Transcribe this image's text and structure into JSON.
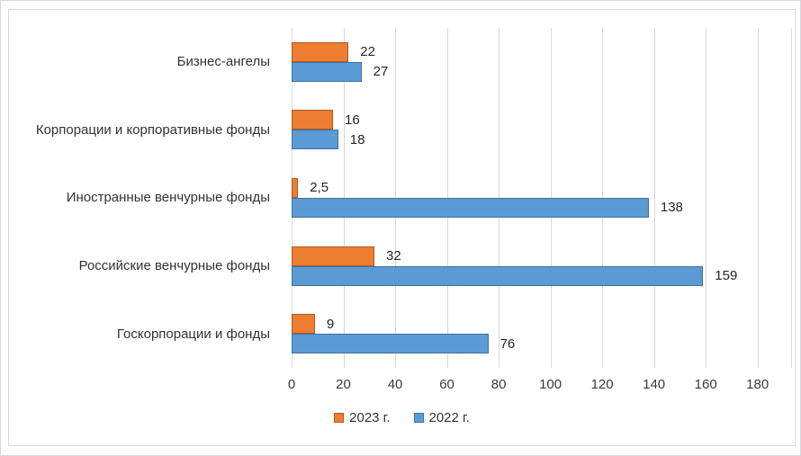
{
  "chart_data": {
    "type": "bar",
    "orientation": "horizontal",
    "title": "",
    "categories": [
      "Бизнес-ангелы",
      "Корпорации и корпоративные фонды",
      "Иностранные венчурные фонды",
      "Российские венчурные фонды",
      "Госкорпорации и фонды"
    ],
    "series": [
      {
        "name": "2023 г.",
        "color": "#ED7D31",
        "border_color": "#AE5A21",
        "values": [
          22,
          16,
          2.5,
          32,
          9
        ],
        "labels": [
          "22",
          "16",
          "2,5",
          "32",
          "9"
        ]
      },
      {
        "name": "2022 г.",
        "color": "#5B9BD5",
        "border_color": "#41719C",
        "values": [
          27,
          18,
          138,
          159,
          76
        ],
        "labels": [
          "27",
          "18",
          "138",
          "159",
          "76"
        ]
      }
    ],
    "x_axis": {
      "min": 0,
      "max": 180,
      "tick_step": 20,
      "ticks": [
        "0",
        "20",
        "40",
        "60",
        "80",
        "100",
        "120",
        "140",
        "160",
        "180"
      ]
    },
    "legend": {
      "position": "bottom",
      "entries": [
        "2023 г.",
        "2022 г."
      ]
    },
    "style": {
      "gridline_color": "#d9d9d9",
      "axis_text_color": "#3a3a3a",
      "data_label_color": "#262626",
      "frame_border_color": "#d9d9d9",
      "outer_border_color": "#d2d9e2"
    }
  }
}
